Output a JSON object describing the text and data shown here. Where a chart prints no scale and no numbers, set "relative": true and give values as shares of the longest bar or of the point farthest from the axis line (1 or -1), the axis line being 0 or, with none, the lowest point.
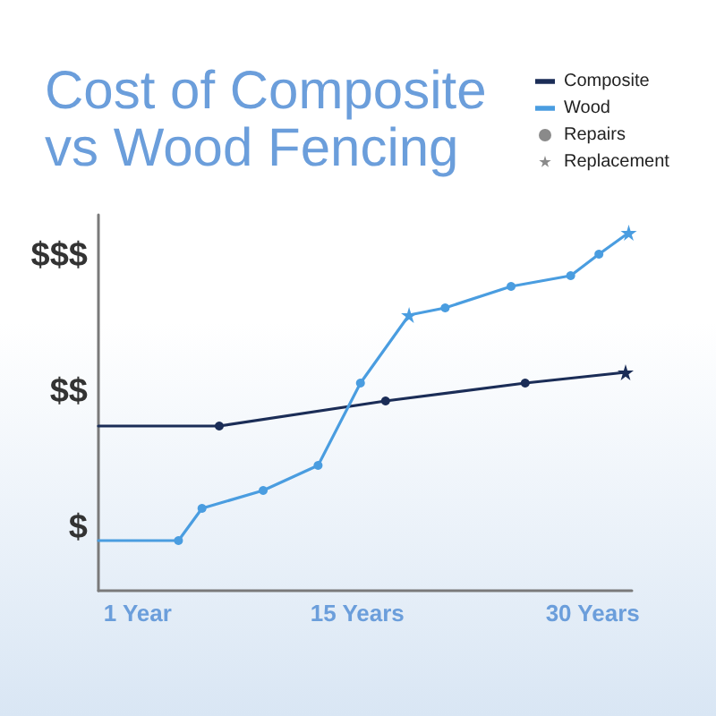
{
  "chart_data": {
    "type": "line",
    "title": "Cost of Composite vs Wood Fencing",
    "relative": true,
    "xlim": [
      -1.5,
      32.5
    ],
    "xticks": [
      {
        "value": 1,
        "label": "1 Year"
      },
      {
        "value": 15,
        "label": "15 Years"
      },
      {
        "value": 30,
        "label": "30 Years"
      }
    ],
    "annotations": [
      "$",
      "$$",
      "$$$",
      "Repairs",
      "Replacement"
    ],
    "legend": "top right",
    "series": [
      {
        "name": "Composite",
        "color": "#1b2d57",
        "marker": "none",
        "x": [
          -1.5,
          6.2,
          16.8,
          25.7,
          32.1
        ],
        "values": [
          0.46,
          0.46,
          0.53,
          0.58,
          0.61
        ]
      },
      {
        "name": "Wood",
        "color": "#4a9de0",
        "marker": "none",
        "x": [
          -1.5,
          3.6,
          5.1,
          9.0,
          12.5,
          15.2,
          18.3,
          20.6,
          24.8,
          28.6,
          30.4,
          32.3
        ],
        "values": [
          0.14,
          0.14,
          0.23,
          0.28,
          0.35,
          0.58,
          0.77,
          0.79,
          0.85,
          0.88,
          0.94,
          1
        ]
      },
      {
        "type": "scatter",
        "marker": "circle",
        "x": [
          6.2,
          16.8,
          25.7,
          3.6,
          5.1,
          9.0,
          12.5,
          15.2,
          20.6,
          24.8,
          28.6,
          30.4
        ],
        "values": [
          0.46,
          0.53,
          0.58,
          0.14,
          0.23,
          0.28,
          0.35,
          0.58,
          0.79,
          0.85,
          0.88,
          0.94
        ],
        "colors": [
          "#1b2d57",
          "#1b2d57",
          "#1b2d57",
          "#4a9de0",
          "#4a9de0",
          "#4a9de0",
          "#4a9de0",
          "#4a9de0",
          "#4a9de0",
          "#4a9de0",
          "#4a9de0",
          "#4a9de0"
        ]
      },
      {
        "type": "scatter",
        "marker": "star",
        "x": [
          32.1,
          18.3,
          32.3
        ],
        "values": [
          0.61,
          0.77,
          1
        ],
        "colors": [
          "#1b2d57",
          "#4a9de0",
          "#4a9de0"
        ]
      }
    ]
  }
}
